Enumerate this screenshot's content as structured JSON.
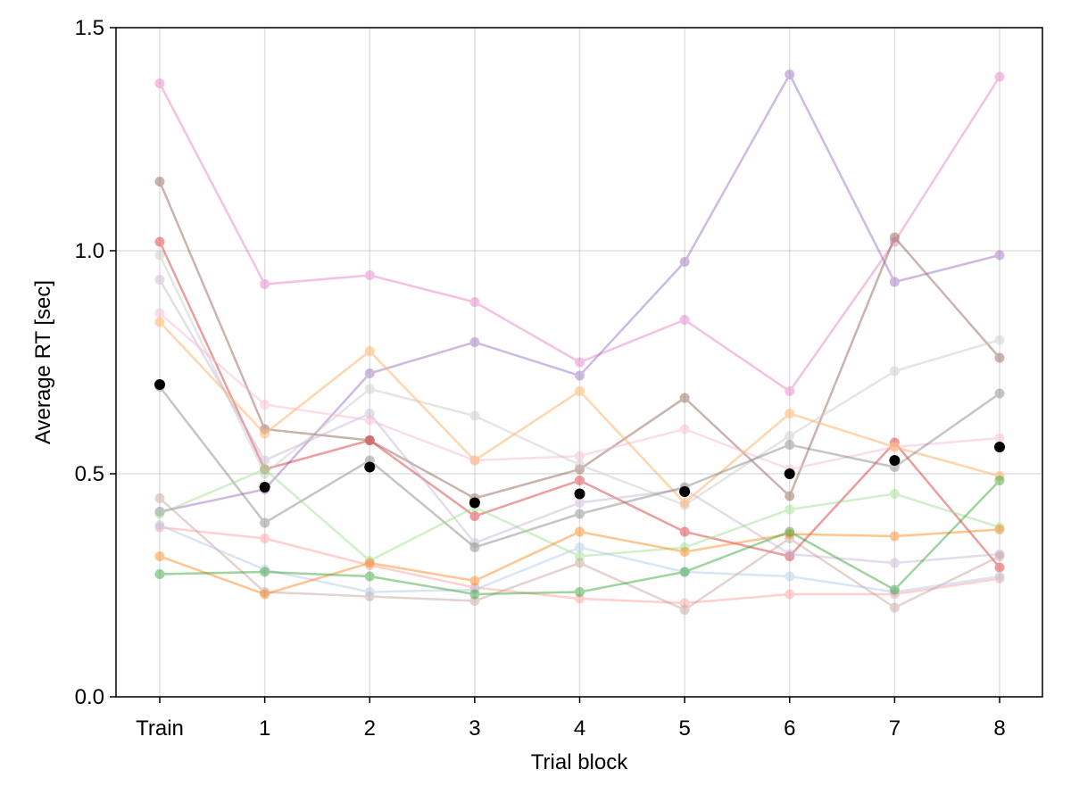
{
  "chart_data": {
    "type": "line",
    "xlabel": "Trial block",
    "ylabel": "Average RT [sec]",
    "categories": [
      "Train",
      "1",
      "2",
      "3",
      "4",
      "5",
      "6",
      "7",
      "8"
    ],
    "y_ticks": [
      "0.0",
      "0.5",
      "1.0",
      "1.5"
    ],
    "ylim": [
      0,
      1.5
    ],
    "grid": true,
    "legend": "none",
    "series": [
      {
        "color": "#e377c2",
        "opacity": 0.45,
        "values": [
          1.375,
          0.925,
          0.945,
          0.885,
          0.75,
          0.845,
          0.685,
          1.02,
          1.39
        ]
      },
      {
        "color": "#9467bd",
        "opacity": 0.45,
        "values": [
          0.415,
          0.465,
          0.725,
          0.795,
          0.72,
          0.975,
          1.395,
          0.93,
          0.99
        ]
      },
      {
        "color": "#8c564b",
        "opacity": 0.45,
        "values": [
          1.155,
          0.6,
          0.575,
          0.445,
          0.51,
          0.67,
          0.45,
          1.03,
          0.76
        ]
      },
      {
        "color": "#d62728",
        "opacity": 0.45,
        "values": [
          1.02,
          0.51,
          0.575,
          0.405,
          0.485,
          0.37,
          0.315,
          0.57,
          0.29
        ]
      },
      {
        "color": "#c7c7c7",
        "opacity": 0.45,
        "values": [
          0.99,
          0.5,
          0.69,
          0.63,
          0.52,
          0.43,
          0.585,
          0.73,
          0.8
        ]
      },
      {
        "color": "#c5b0d5",
        "opacity": 0.45,
        "values": [
          0.935,
          0.53,
          0.635,
          0.345,
          0.435,
          0.465,
          0.32,
          0.3,
          0.32
        ]
      },
      {
        "color": "#f7b6d2",
        "opacity": 0.45,
        "values": [
          0.86,
          0.655,
          0.62,
          0.53,
          0.54,
          0.6,
          0.51,
          0.56,
          0.58
        ]
      },
      {
        "color": "#ffbb78",
        "opacity": 0.6,
        "values": [
          0.84,
          0.59,
          0.775,
          0.53,
          0.685,
          0.435,
          0.635,
          0.56,
          0.495
        ]
      },
      {
        "color": "#7f7f7f",
        "opacity": 0.45,
        "values": [
          0.695,
          0.39,
          0.53,
          0.335,
          0.41,
          0.47,
          0.565,
          0.515,
          0.68
        ]
      },
      {
        "color": "#98df8a",
        "opacity": 0.45,
        "values": [
          0.41,
          0.51,
          0.305,
          0.425,
          0.315,
          0.335,
          0.42,
          0.455,
          0.38
        ]
      },
      {
        "color": "#ff9896",
        "opacity": 0.45,
        "values": [
          0.38,
          0.355,
          0.295,
          0.245,
          0.22,
          0.21,
          0.23,
          0.23,
          0.265
        ]
      },
      {
        "color": "#c49c94",
        "opacity": 0.45,
        "values": [
          0.445,
          0.235,
          0.225,
          0.215,
          0.3,
          0.195,
          0.355,
          0.2,
          0.315
        ]
      },
      {
        "color": "#aec7e8",
        "opacity": 0.45,
        "values": [
          0.385,
          0.285,
          0.235,
          0.24,
          0.335,
          0.28,
          0.27,
          0.235,
          0.27
        ]
      },
      {
        "color": "#ff7f0e",
        "opacity": 0.45,
        "values": [
          0.315,
          0.23,
          0.3,
          0.26,
          0.37,
          0.325,
          0.365,
          0.36,
          0.375
        ]
      },
      {
        "color": "#2ca02c",
        "opacity": 0.45,
        "values": [
          0.275,
          0.28,
          0.27,
          0.23,
          0.235,
          0.28,
          0.37,
          0.24,
          0.485
        ]
      }
    ],
    "mean": {
      "color": "#000000",
      "values": [
        0.7,
        0.47,
        0.515,
        0.435,
        0.455,
        0.46,
        0.5,
        0.53,
        0.56
      ]
    }
  }
}
